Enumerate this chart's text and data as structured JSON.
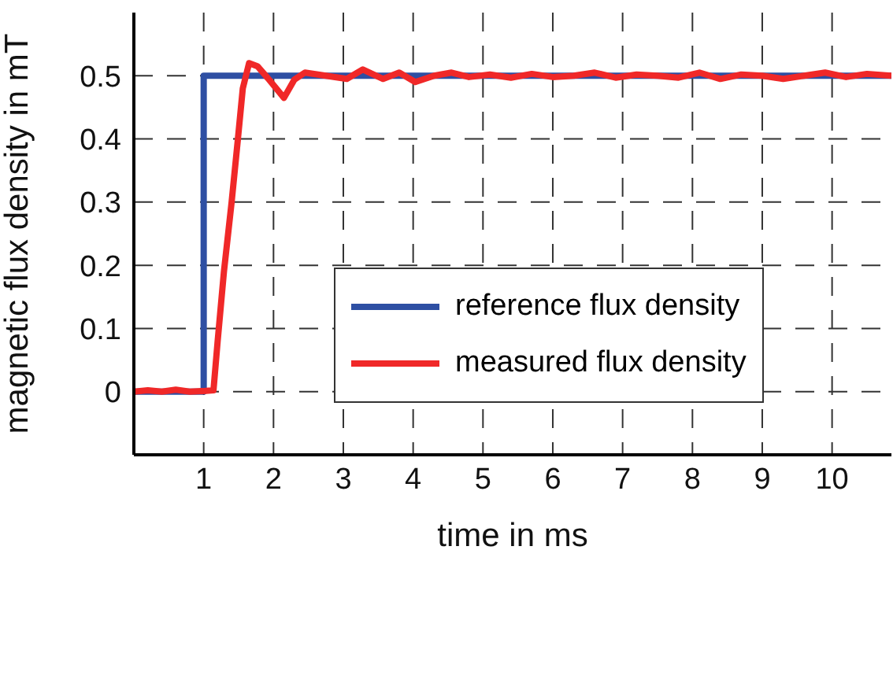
{
  "chart_data": {
    "type": "line",
    "xlabel": "time in ms",
    "ylabel": "magnetic flux density in mT",
    "xlim": [
      0,
      10.85
    ],
    "xticks": [
      1,
      2,
      3,
      4,
      5,
      6,
      7,
      8,
      9,
      10
    ],
    "ylim": [
      -0.1,
      0.6
    ],
    "yticks": [
      0,
      0.1,
      0.2,
      0.3,
      0.4,
      0.5
    ],
    "grid": true,
    "legend": "right",
    "line_style": "solid",
    "marker": "none",
    "series": [
      {
        "name": "reference flux density",
        "color": "#2e4fa3",
        "x": [
          0,
          1,
          1,
          10.85
        ],
        "values": [
          0,
          0,
          0.5,
          0.5
        ]
      },
      {
        "name": "measured flux density",
        "color": "#f02828",
        "x": [
          0,
          0.2,
          0.4,
          0.6,
          0.8,
          1.0,
          1.14,
          1.2,
          1.29,
          1.4,
          1.49,
          1.56,
          1.65,
          1.77,
          1.92,
          2.15,
          2.3,
          2.45,
          2.75,
          3.05,
          3.28,
          3.57,
          3.8,
          4.03,
          4.3,
          4.55,
          4.8,
          5.1,
          5.4,
          5.7,
          6.0,
          6.3,
          6.6,
          6.9,
          7.2,
          7.5,
          7.8,
          8.1,
          8.4,
          8.7,
          9.0,
          9.3,
          9.6,
          9.9,
          10.2,
          10.5,
          10.85
        ],
        "values": [
          0,
          0.002,
          0,
          0.003,
          0,
          0.001,
          0.002,
          0.08,
          0.19,
          0.3,
          0.4,
          0.48,
          0.52,
          0.515,
          0.496,
          0.465,
          0.494,
          0.505,
          0.5,
          0.495,
          0.51,
          0.495,
          0.505,
          0.49,
          0.5,
          0.505,
          0.498,
          0.502,
          0.497,
          0.503,
          0.498,
          0.5,
          0.505,
          0.497,
          0.502,
          0.5,
          0.497,
          0.505,
          0.495,
          0.502,
          0.5,
          0.495,
          0.5,
          0.505,
          0.498,
          0.503,
          0.5
        ]
      }
    ]
  }
}
